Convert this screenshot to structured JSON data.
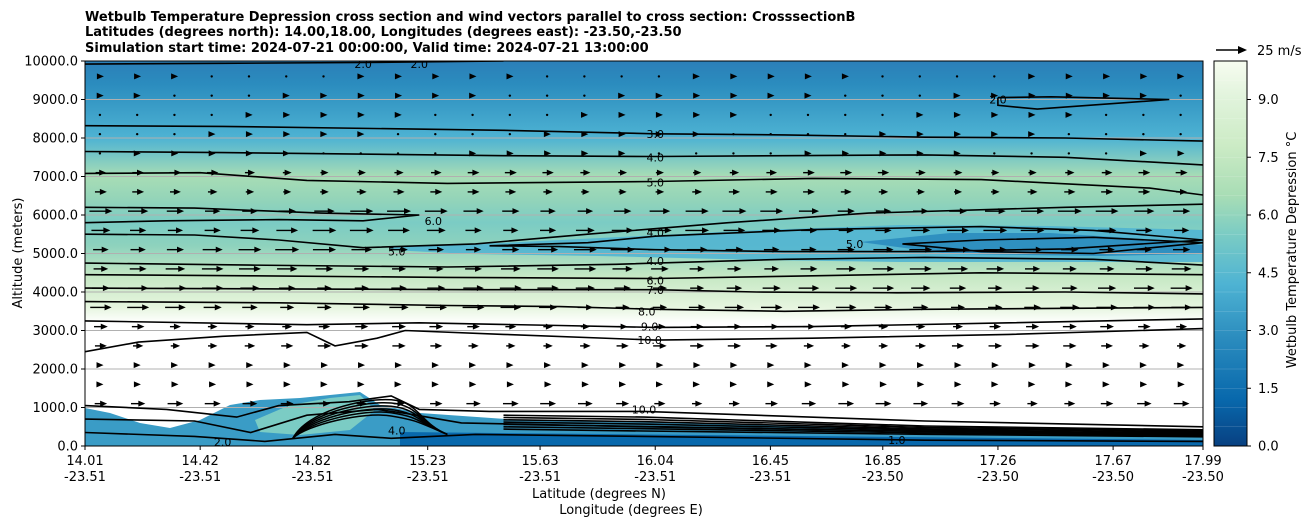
{
  "title_lines": [
    "Wetbulb Temperature Depression cross section and wind vectors parallel to cross section: CrosssectionB",
    "Latitudes (degrees north): 14.00,18.00, Longitudes (degrees east): -23.50,-23.50",
    "Simulation start time: 2024-07-21 00:00:00, Valid time: 2024-07-21 13:00:00"
  ],
  "chart_data": {
    "type": "heatmap",
    "subtype": "filled contour cross section with wind vectors",
    "xlabel": "Latitude (degrees N)",
    "xlabel2": "Longitude (degrees E)",
    "ylabel": "Altitude (meters)",
    "x_ticks": [
      {
        "lat": "14.01",
        "lon": "-23.51"
      },
      {
        "lat": "14.42",
        "lon": "-23.51"
      },
      {
        "lat": "14.82",
        "lon": "-23.51"
      },
      {
        "lat": "15.23",
        "lon": "-23.51"
      },
      {
        "lat": "15.63",
        "lon": "-23.51"
      },
      {
        "lat": "16.04",
        "lon": "-23.51"
      },
      {
        "lat": "16.45",
        "lon": "-23.51"
      },
      {
        "lat": "16.85",
        "lon": "-23.50"
      },
      {
        "lat": "17.26",
        "lon": "-23.50"
      },
      {
        "lat": "17.67",
        "lon": "-23.50"
      },
      {
        "lat": "17.99",
        "lon": "-23.50"
      }
    ],
    "xlim": [
      14.01,
      17.99
    ],
    "y_ticks": [
      "0.0",
      "1000.0",
      "2000.0",
      "3000.0",
      "4000.0",
      "5000.0",
      "6000.0",
      "7000.0",
      "8000.0",
      "9000.0",
      "10000.0"
    ],
    "ylim": [
      0,
      10000
    ],
    "grid": "horizontal",
    "colorbar": {
      "label": "Wetbulb Temperature Depression °C",
      "ticks": [
        "0.0",
        "1.5",
        "3.0",
        "4.5",
        "6.0",
        "7.5",
        "9.0"
      ],
      "range": [
        0,
        10
      ],
      "levels": 20,
      "colormap": "GnBu reversed",
      "colors": [
        "#084081",
        "#0868ac",
        "#2b8cbe",
        "#4eb3d3",
        "#7bccc4",
        "#a8ddb5",
        "#ccebc5",
        "#e0f3db",
        "#f7fcf0"
      ]
    },
    "quiver_key": {
      "label": "25 m/s",
      "speed": 25
    },
    "contour_labels": [
      {
        "value": "2.0",
        "lat": 15.0,
        "alt": 9920
      },
      {
        "value": "2.0",
        "lat": 15.2,
        "alt": 9920
      },
      {
        "value": "2.0",
        "lat": 17.26,
        "alt": 9000
      },
      {
        "value": "3.0",
        "lat": 16.04,
        "alt": 8100
      },
      {
        "value": "4.0",
        "lat": 16.04,
        "alt": 7500
      },
      {
        "value": "5.0",
        "lat": 16.04,
        "alt": 6850
      },
      {
        "value": "6.0",
        "lat": 15.25,
        "alt": 5850
      },
      {
        "value": "5.0",
        "lat": 15.12,
        "alt": 5050
      },
      {
        "value": "4.0",
        "lat": 16.04,
        "alt": 5550
      },
      {
        "value": "5.0",
        "lat": 16.75,
        "alt": 5250
      },
      {
        "value": "4.0",
        "lat": 16.04,
        "alt": 4800
      },
      {
        "value": "6.0",
        "lat": 16.04,
        "alt": 4300
      },
      {
        "value": "7.0",
        "lat": 16.04,
        "alt": 4050
      },
      {
        "value": "8.0",
        "lat": 16.01,
        "alt": 3500
      },
      {
        "value": "9.0",
        "lat": 16.02,
        "alt": 3100
      },
      {
        "value": "10.0",
        "lat": 16.02,
        "alt": 2750
      },
      {
        "value": "10.0",
        "lat": 16.0,
        "alt": 950
      },
      {
        "value": "4.0",
        "lat": 15.12,
        "alt": 400
      },
      {
        "value": "1.0",
        "lat": 16.9,
        "alt": 150
      },
      {
        "value": "2.0",
        "lat": 14.5,
        "alt": 100
      }
    ],
    "series": [
      {
        "level": 2.0,
        "points": [
          [
            14.01,
            9920
          ],
          [
            14.5,
            9940
          ],
          [
            15.0,
            9960
          ],
          [
            15.5,
            10000
          ]
        ]
      },
      {
        "level": 2.0,
        "points": [
          [
            17.26,
            9050
          ],
          [
            17.45,
            9070
          ],
          [
            17.87,
            9000
          ],
          [
            17.4,
            8750
          ],
          [
            17.26,
            8850
          ],
          [
            17.26,
            9050
          ]
        ]
      },
      {
        "level": 3.0,
        "points": [
          [
            14.01,
            8320
          ],
          [
            14.5,
            8300
          ],
          [
            15.5,
            8200
          ],
          [
            16.04,
            8110
          ],
          [
            16.5,
            8080
          ],
          [
            17.0,
            8020
          ],
          [
            17.5,
            8000
          ],
          [
            17.99,
            7920
          ]
        ]
      },
      {
        "level": 4.0,
        "points": [
          [
            14.01,
            7650
          ],
          [
            14.5,
            7620
          ],
          [
            15.5,
            7540
          ],
          [
            16.04,
            7520
          ],
          [
            16.5,
            7540
          ],
          [
            17.0,
            7560
          ],
          [
            17.5,
            7500
          ],
          [
            17.99,
            7300
          ]
        ]
      },
      {
        "level": 5.0,
        "points": [
          [
            14.01,
            7080
          ],
          [
            14.42,
            7100
          ],
          [
            14.8,
            6900
          ],
          [
            15.3,
            6820
          ],
          [
            16.04,
            6870
          ],
          [
            16.6,
            6950
          ],
          [
            17.2,
            6920
          ],
          [
            17.8,
            6700
          ],
          [
            17.99,
            6520
          ]
        ]
      },
      {
        "level": 6.0,
        "points": [
          [
            14.01,
            6200
          ],
          [
            14.4,
            6180
          ],
          [
            14.85,
            6050
          ],
          [
            15.2,
            6000
          ],
          [
            15.0,
            5850
          ],
          [
            14.7,
            5880
          ],
          [
            14.3,
            5850
          ],
          [
            14.01,
            5800
          ]
        ]
      },
      {
        "level": 5.0,
        "points": [
          [
            14.01,
            5500
          ],
          [
            14.4,
            5480
          ],
          [
            14.7,
            5350
          ],
          [
            15.0,
            5150
          ],
          [
            15.4,
            5250
          ],
          [
            15.8,
            5500
          ],
          [
            16.3,
            5800
          ],
          [
            16.8,
            6050
          ],
          [
            17.5,
            6200
          ],
          [
            17.99,
            6280
          ]
        ]
      },
      {
        "level": 4.0,
        "points": [
          [
            15.45,
            5200
          ],
          [
            15.8,
            5280
          ],
          [
            16.04,
            5450
          ],
          [
            16.6,
            5620
          ],
          [
            17.2,
            5700
          ],
          [
            17.6,
            5600
          ],
          [
            17.99,
            5350
          ],
          [
            17.5,
            5120
          ],
          [
            17.0,
            5050
          ],
          [
            16.5,
            5050
          ],
          [
            16.04,
            5100
          ],
          [
            15.7,
            5180
          ],
          [
            15.45,
            5200
          ]
        ]
      },
      {
        "level": 5.0,
        "points": [
          [
            16.92,
            5250
          ],
          [
            17.2,
            5350
          ],
          [
            17.6,
            5420
          ],
          [
            17.99,
            5280
          ],
          [
            17.6,
            5000
          ],
          [
            17.2,
            5050
          ],
          [
            16.92,
            5250
          ]
        ]
      },
      {
        "level": 4.0,
        "points": [
          [
            14.01,
            4750
          ],
          [
            14.6,
            4700
          ],
          [
            15.3,
            4650
          ],
          [
            15.9,
            4720
          ],
          [
            16.5,
            4850
          ],
          [
            17.0,
            4900
          ],
          [
            17.6,
            4850
          ],
          [
            17.99,
            4700
          ]
        ]
      },
      {
        "level": 6.0,
        "points": [
          [
            14.01,
            4450
          ],
          [
            14.6,
            4420
          ],
          [
            15.3,
            4380
          ],
          [
            16.04,
            4350
          ],
          [
            16.6,
            4420
          ],
          [
            17.2,
            4500
          ],
          [
            17.99,
            4450
          ]
        ]
      },
      {
        "level": 7.0,
        "points": [
          [
            14.01,
            4100
          ],
          [
            14.7,
            4080
          ],
          [
            15.4,
            4060
          ],
          [
            16.04,
            4060
          ],
          [
            16.4,
            4000
          ],
          [
            16.9,
            3980
          ],
          [
            17.5,
            4000
          ],
          [
            17.99,
            3950
          ]
        ]
      },
      {
        "level": 8.0,
        "points": [
          [
            14.01,
            3750
          ],
          [
            14.7,
            3720
          ],
          [
            15.3,
            3650
          ],
          [
            15.7,
            3620
          ],
          [
            16.04,
            3550
          ],
          [
            16.5,
            3500
          ],
          [
            17.0,
            3550
          ],
          [
            17.99,
            3600
          ]
        ]
      },
      {
        "level": 9.0,
        "points": [
          [
            14.01,
            3250
          ],
          [
            14.8,
            3150
          ],
          [
            15.2,
            3200
          ],
          [
            15.7,
            3130
          ],
          [
            16.04,
            3080
          ],
          [
            16.6,
            3100
          ],
          [
            17.3,
            3200
          ],
          [
            17.99,
            3300
          ]
        ]
      },
      {
        "level": 10.0,
        "points": [
          [
            14.01,
            2450
          ],
          [
            14.2,
            2700
          ],
          [
            14.5,
            2850
          ],
          [
            14.8,
            2950
          ],
          [
            14.9,
            2600
          ],
          [
            15.05,
            2800
          ],
          [
            15.15,
            3000
          ],
          [
            15.5,
            2900
          ],
          [
            16.04,
            2750
          ],
          [
            16.6,
            2800
          ],
          [
            17.3,
            2900
          ],
          [
            17.99,
            3050
          ]
        ]
      },
      {
        "level": 10.0,
        "points": [
          [
            14.01,
            1050
          ],
          [
            14.3,
            950
          ],
          [
            14.55,
            750
          ],
          [
            14.7,
            1050
          ],
          [
            14.95,
            1150
          ],
          [
            15.1,
            1300
          ],
          [
            15.2,
            950
          ],
          [
            15.45,
            900
          ],
          [
            16.0,
            900
          ],
          [
            17.0,
            650
          ],
          [
            17.99,
            500
          ]
        ]
      },
      {
        "level": 4.0,
        "points": [
          [
            14.01,
            700
          ],
          [
            14.4,
            650
          ],
          [
            14.6,
            350
          ],
          [
            14.8,
            800
          ],
          [
            15.05,
            950
          ],
          [
            15.15,
            850
          ],
          [
            15.35,
            600
          ],
          [
            16.0,
            500
          ],
          [
            17.0,
            380
          ],
          [
            17.99,
            300
          ]
        ]
      },
      {
        "level": 2.0,
        "points": [
          [
            14.01,
            350
          ],
          [
            14.4,
            250
          ],
          [
            14.65,
            120
          ],
          [
            14.9,
            300
          ],
          [
            15.1,
            200
          ],
          [
            15.4,
            300
          ],
          [
            16.0,
            250
          ],
          [
            17.0,
            150
          ],
          [
            17.99,
            120
          ]
        ]
      }
    ],
    "wind_vectors": "rightward (southward-to-northward parallel), strongest 3000-5500 m and near 1000 m"
  }
}
